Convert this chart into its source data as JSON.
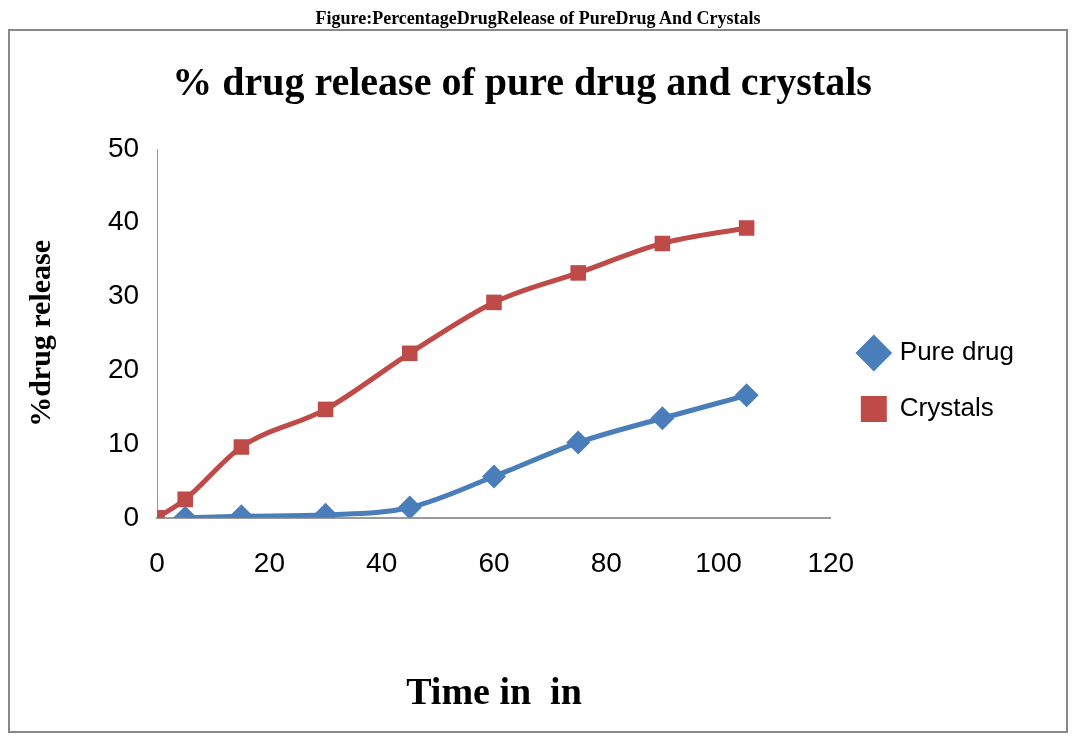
{
  "chart_data": {
    "type": "line",
    "title": "% drug release of pure drug and crystals",
    "xlabel": "Time in  in",
    "ylabel": "%drug release",
    "annotations": [
      "Figure:PercentageDrugRelease of PureDrug And Crystals"
    ],
    "xlim": [
      0,
      120
    ],
    "xticks": [
      0,
      20,
      40,
      60,
      80,
      100,
      120
    ],
    "ylim": [
      0,
      50
    ],
    "yticks": [
      0,
      10,
      20,
      30,
      40,
      50
    ],
    "grid": false,
    "legend": "right",
    "series": [
      {
        "name": "Pure drug",
        "color": "#4a7ebb",
        "marker": "diamond",
        "x": [
          5,
          15,
          30,
          45,
          60,
          75,
          90,
          105
        ],
        "values": [
          0,
          0.2,
          0.4,
          1.4,
          5.6,
          10.2,
          13.5,
          16.6
        ]
      },
      {
        "name": "Crystals",
        "color": "#be4b48",
        "marker": "square",
        "x": [
          0,
          5,
          15,
          30,
          45,
          60,
          75,
          90,
          105
        ],
        "values": [
          0,
          2.5,
          9.6,
          14.7,
          22.3,
          29.2,
          33.2,
          37.2,
          39.3
        ]
      }
    ]
  }
}
